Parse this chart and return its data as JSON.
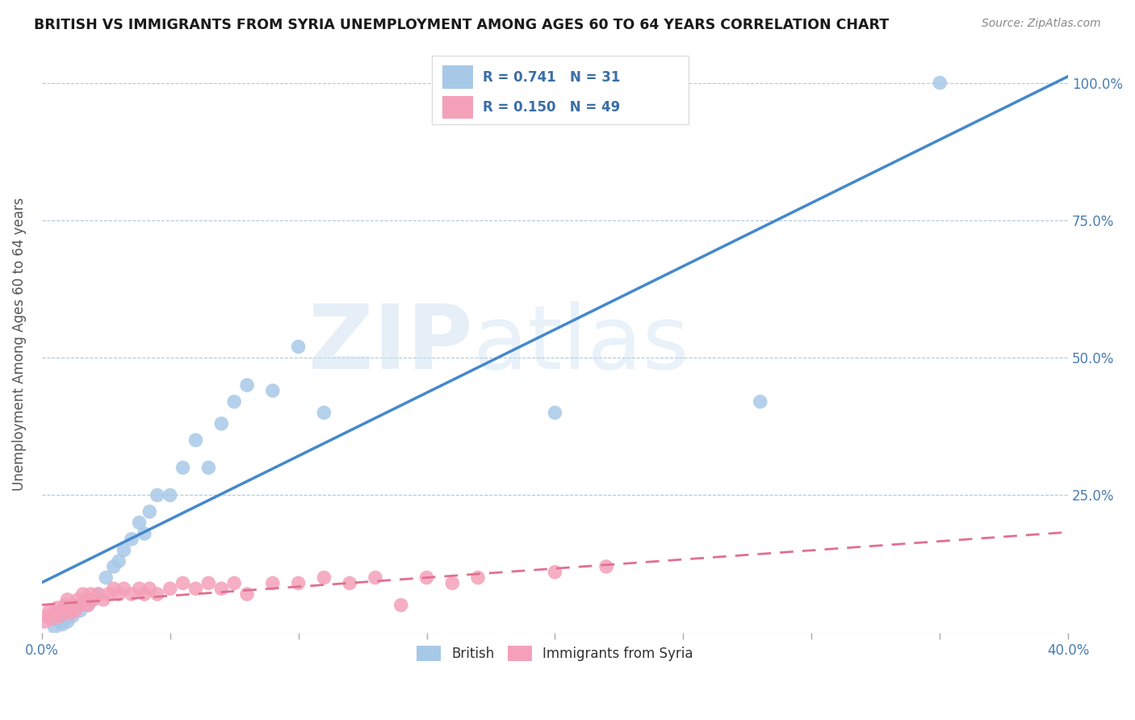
{
  "title": "BRITISH VS IMMIGRANTS FROM SYRIA UNEMPLOYMENT AMONG AGES 60 TO 64 YEARS CORRELATION CHART",
  "source": "Source: ZipAtlas.com",
  "ylabel": "Unemployment Among Ages 60 to 64 years",
  "xlim": [
    0.0,
    0.4
  ],
  "ylim": [
    0.0,
    1.05
  ],
  "british_R": 0.741,
  "british_N": 31,
  "syria_R": 0.15,
  "syria_N": 49,
  "british_color": "#a8c8e8",
  "syria_color": "#f4a0b8",
  "british_line_color": "#4488cc",
  "syria_line_color": "#e07090",
  "british_x": [
    0.005,
    0.007,
    0.008,
    0.01,
    0.012,
    0.015,
    0.018,
    0.02,
    0.022,
    0.025,
    0.028,
    0.03,
    0.032,
    0.035,
    0.038,
    0.04,
    0.042,
    0.045,
    0.05,
    0.055,
    0.06,
    0.065,
    0.07,
    0.075,
    0.08,
    0.09,
    0.1,
    0.11,
    0.2,
    0.28,
    0.35
  ],
  "british_y": [
    0.01,
    0.02,
    0.015,
    0.02,
    0.03,
    0.04,
    0.05,
    0.06,
    0.07,
    0.1,
    0.12,
    0.13,
    0.15,
    0.17,
    0.2,
    0.18,
    0.22,
    0.25,
    0.25,
    0.3,
    0.35,
    0.3,
    0.38,
    0.42,
    0.45,
    0.44,
    0.52,
    0.4,
    0.4,
    0.42,
    1.0
  ],
  "syria_x": [
    0.001,
    0.002,
    0.003,
    0.004,
    0.005,
    0.006,
    0.007,
    0.008,
    0.009,
    0.01,
    0.011,
    0.012,
    0.013,
    0.014,
    0.015,
    0.016,
    0.017,
    0.018,
    0.019,
    0.02,
    0.022,
    0.024,
    0.026,
    0.028,
    0.03,
    0.032,
    0.035,
    0.038,
    0.04,
    0.042,
    0.045,
    0.05,
    0.055,
    0.06,
    0.065,
    0.07,
    0.075,
    0.08,
    0.09,
    0.1,
    0.11,
    0.12,
    0.13,
    0.14,
    0.15,
    0.16,
    0.17,
    0.2,
    0.22
  ],
  "syria_y": [
    0.02,
    0.03,
    0.04,
    0.025,
    0.035,
    0.045,
    0.03,
    0.04,
    0.05,
    0.06,
    0.035,
    0.05,
    0.04,
    0.06,
    0.05,
    0.07,
    0.06,
    0.05,
    0.07,
    0.06,
    0.07,
    0.06,
    0.07,
    0.08,
    0.07,
    0.08,
    0.07,
    0.08,
    0.07,
    0.08,
    0.07,
    0.08,
    0.09,
    0.08,
    0.09,
    0.08,
    0.09,
    0.07,
    0.09,
    0.09,
    0.1,
    0.09,
    0.1,
    0.05,
    0.1,
    0.09,
    0.1,
    0.11,
    0.12
  ],
  "xtick_positions": [
    0.0,
    0.05,
    0.1,
    0.15,
    0.2,
    0.25,
    0.3,
    0.35,
    0.4
  ],
  "ytick_positions": [
    0.0,
    0.25,
    0.5,
    0.75,
    1.0
  ],
  "ytick_labels": [
    "",
    "25.0%",
    "50.0%",
    "75.0%",
    "100.0%"
  ]
}
